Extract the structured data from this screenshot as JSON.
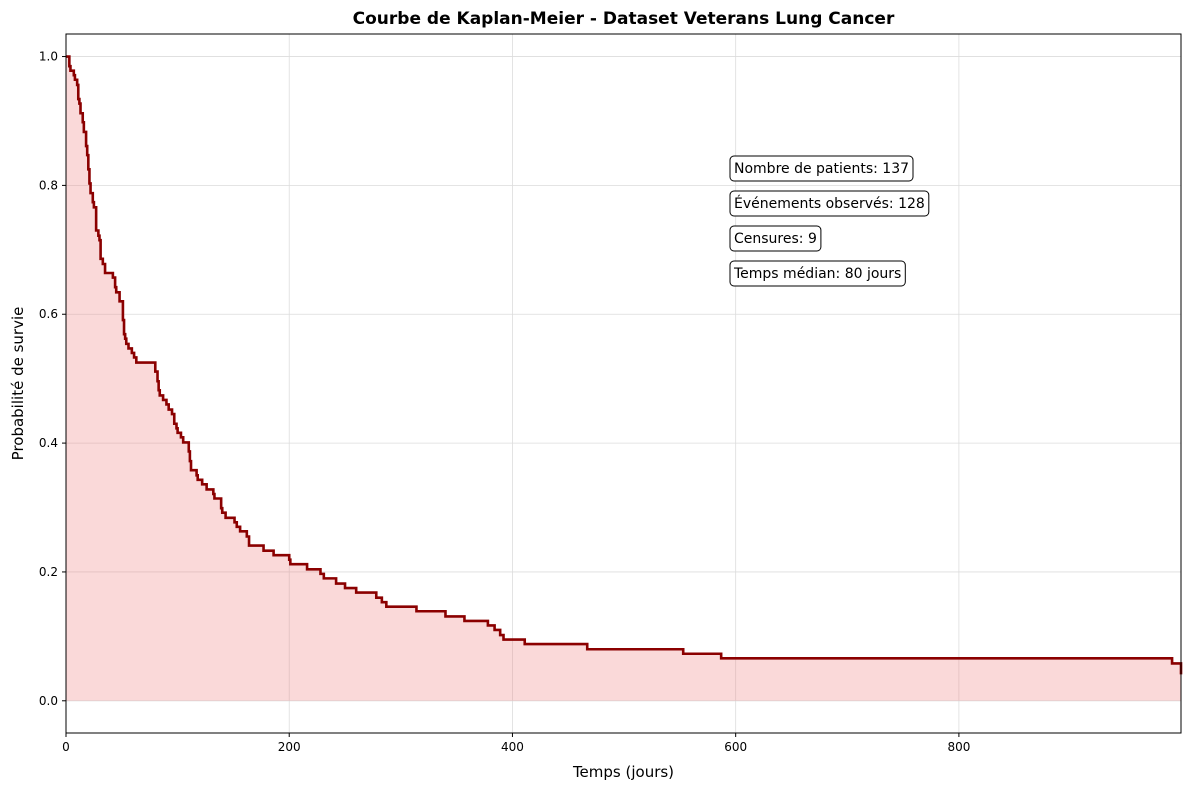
{
  "chart_data": {
    "type": "line",
    "style": "step-post",
    "title": "Courbe de Kaplan-Meier - Dataset Veterans Lung Cancer",
    "xlabel": "Temps (jours)",
    "ylabel": "Probabilité de survie",
    "xlim": [
      0,
      999
    ],
    "ylim": [
      -0.05,
      1.035
    ],
    "xticks": [
      0,
      200,
      400,
      600,
      800
    ],
    "yticks": [
      0.0,
      0.2,
      0.4,
      0.6,
      0.8,
      1.0
    ],
    "xtick_labels": [
      "0",
      "200",
      "400",
      "600",
      "800"
    ],
    "ytick_labels": [
      "0.0",
      "0.2",
      "0.4",
      "0.6",
      "0.8",
      "1.0"
    ],
    "grid": true,
    "line_color": "#8b0000",
    "fill_color": "#f08080",
    "series": [
      {
        "x": [
          0,
          3,
          4,
          7,
          8,
          10,
          11,
          12,
          13,
          15,
          16,
          18,
          19,
          20,
          21,
          22,
          24,
          25,
          27,
          29,
          30,
          31,
          33,
          35,
          36,
          42,
          44,
          45,
          48,
          49,
          51,
          52,
          53,
          54,
          56,
          59,
          61,
          63,
          72,
          80,
          82,
          83,
          84,
          87,
          90,
          92,
          95,
          97,
          99,
          100,
          103,
          105,
          110,
          111,
          112,
          117,
          118,
          122,
          126,
          132,
          133,
          139,
          140,
          143,
          151,
          153,
          156,
          162,
          164,
          177,
          186,
          200,
          201,
          216,
          228,
          231,
          242,
          250,
          260,
          278,
          283,
          287,
          314,
          340,
          357,
          378,
          384,
          389,
          392,
          411,
          467,
          553,
          587,
          991,
          999
        ],
        "y": [
          1.0,
          0.985,
          0.978,
          0.971,
          0.964,
          0.956,
          0.934,
          0.927,
          0.912,
          0.898,
          0.883,
          0.861,
          0.847,
          0.825,
          0.803,
          0.788,
          0.774,
          0.766,
          0.73,
          0.722,
          0.715,
          0.686,
          0.678,
          0.664,
          0.664,
          0.657,
          0.642,
          0.634,
          0.62,
          0.62,
          0.591,
          0.569,
          0.562,
          0.554,
          0.547,
          0.54,
          0.533,
          0.525,
          0.511,
          0.496,
          0.482,
          0.474,
          0.467,
          0.46,
          0.452,
          0.445,
          0.43,
          0.423,
          0.416,
          0.409,
          0.401,
          0.401,
          0.387,
          0.372,
          0.358,
          0.35,
          0.343,
          0.336,
          0.328,
          0.321,
          0.314,
          0.299,
          0.292,
          0.284,
          0.277,
          0.27,
          0.263,
          0.255,
          0.241,
          0.233,
          0.226,
          0.219,
          0.204,
          0.197,
          0.19,
          0.182,
          0.175,
          0.168,
          0.16,
          0.153,
          0.146,
          0.139,
          0.131,
          0.124,
          0.117,
          0.11,
          0.102,
          0.095,
          0.088,
          0.08,
          0.073,
          0.066,
          0.058,
          0.051,
          0.044
        ],
        "y_steps": [
          1.0,
          0.985,
          0.978,
          0.971,
          0.964,
          0.956,
          0.934,
          0.927,
          0.912,
          0.898,
          0.883,
          0.861,
          0.847,
          0.825,
          0.803,
          0.788,
          0.774,
          0.766,
          0.73,
          0.722,
          0.715,
          0.686,
          0.678,
          0.664,
          0.664,
          0.657,
          0.642,
          0.634,
          0.62,
          0.62,
          0.591,
          0.569,
          0.562,
          0.554,
          0.547,
          0.54,
          0.533,
          0.525,
          0.525,
          0.511,
          0.496,
          0.482,
          0.474,
          0.467,
          0.46,
          0.452,
          0.445,
          0.43,
          0.423,
          0.416,
          0.409,
          0.401,
          0.387,
          0.372,
          0.358,
          0.35,
          0.343,
          0.336,
          0.328,
          0.321,
          0.314,
          0.299,
          0.292,
          0.284,
          0.277,
          0.27,
          0.263,
          0.255,
          0.241,
          0.233,
          0.226,
          0.219,
          0.212,
          0.204,
          0.197,
          0.19,
          0.182,
          0.175,
          0.168,
          0.16,
          0.153,
          0.146,
          0.139,
          0.131,
          0.124,
          0.117,
          0.11,
          0.102,
          0.095,
          0.088,
          0.08,
          0.073,
          0.066,
          0.058,
          0.051
        ]
      }
    ],
    "annotations": [
      "Nombre de patients: 137",
      "Événements observés: 128",
      "Censures: 9",
      "Temps médian: 80 jours"
    ]
  }
}
